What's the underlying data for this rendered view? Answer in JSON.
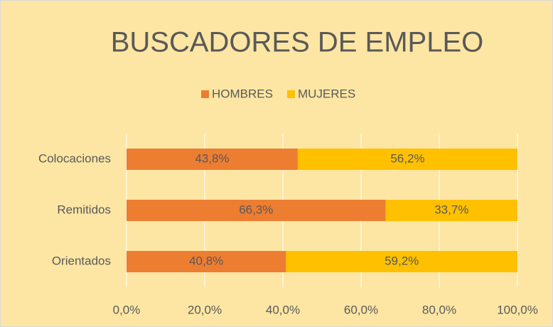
{
  "chart_data": {
    "type": "stacked-bar-horizontal",
    "title": "BUSCADORES DE EMPLEO",
    "categories": [
      "Colocaciones",
      "Remitidos",
      "Orientados"
    ],
    "series": [
      {
        "name": "HOMBRES",
        "color": "#ED7D31",
        "values": [
          43.8,
          66.3,
          40.8
        ],
        "value_labels": [
          "43,8%",
          "66,3%",
          "40,8%"
        ]
      },
      {
        "name": "MUJERES",
        "color": "#FFC000",
        "values": [
          56.2,
          33.7,
          59.2
        ],
        "value_labels": [
          "56,2%",
          "33,7%",
          "59,2%"
        ]
      }
    ],
    "xlim": [
      0,
      100
    ],
    "xticks": [
      {
        "value": 0,
        "label": "0,0%"
      },
      {
        "value": 20,
        "label": "20,0%"
      },
      {
        "value": 40,
        "label": "40,0%"
      },
      {
        "value": 60,
        "label": "60,0%"
      },
      {
        "value": 80,
        "label": "80,0%"
      },
      {
        "value": 100,
        "label": "100,0%"
      }
    ],
    "grid": true,
    "legend": "top"
  }
}
